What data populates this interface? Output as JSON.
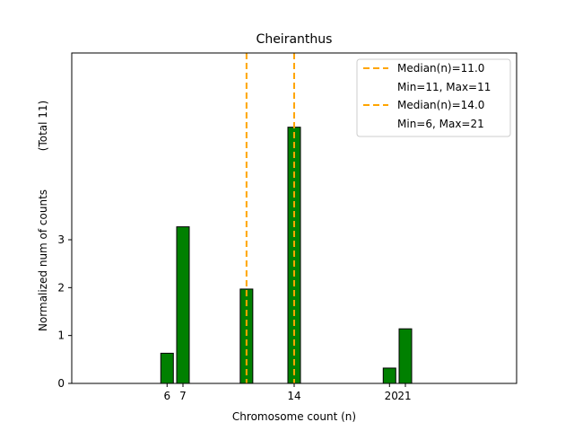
{
  "chart_data": {
    "type": "bar",
    "title": "Cheiranthus",
    "xlabel": "Chromosome count (n)",
    "ylabel": "Normalized num of counts",
    "ylabel_note": "(Total 11)",
    "xlim": [
      0,
      28
    ],
    "ylim": [
      0,
      6.9
    ],
    "xticks": [
      6,
      7,
      14,
      20,
      21
    ],
    "xtick_labels": [
      "6",
      "7",
      "14",
      "20",
      "21"
    ],
    "yticks": [
      0,
      1,
      2,
      3
    ],
    "ytick_labels": [
      "0",
      "1",
      "2",
      "3"
    ],
    "bar_color": "#008000",
    "median_color": "#FFA500",
    "bars": [
      {
        "x": 6,
        "value": 0.63
      },
      {
        "x": 7,
        "value": 3.27
      },
      {
        "x": 11,
        "value": 1.97
      },
      {
        "x": 14,
        "value": 5.35
      },
      {
        "x": 20,
        "value": 0.32
      },
      {
        "x": 21,
        "value": 1.14
      }
    ],
    "medians": [
      {
        "x": 11.0,
        "label": "Median(n)=11.0",
        "range_label": "Min=11, Max=11"
      },
      {
        "x": 14.0,
        "label": "Median(n)=14.0",
        "range_label": "Min=6, Max=21"
      }
    ],
    "legend_position": "top-right"
  }
}
